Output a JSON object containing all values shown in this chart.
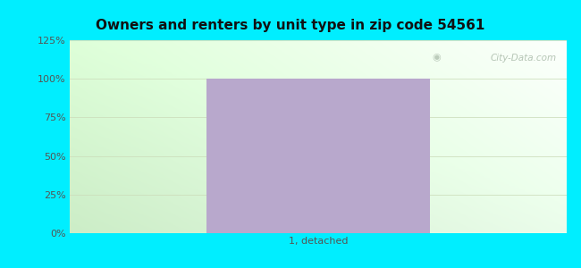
{
  "title": "Owners and renters by unit type in zip code 54561",
  "categories": [
    "1, detached"
  ],
  "values": [
    100
  ],
  "bar_color": "#b8a8cc",
  "ylim": [
    0,
    125
  ],
  "yticks": [
    0,
    25,
    50,
    75,
    100,
    125
  ],
  "ytick_labels": [
    "0%",
    "25%",
    "50%",
    "75%",
    "100%",
    "125%"
  ],
  "background_outer": "#00eeff",
  "title_fontsize": 11,
  "tick_fontsize": 8,
  "xlabel_fontsize": 8,
  "watermark": "City-Data.com",
  "bar_width": 0.45,
  "grid_color": "#ddeecc",
  "grid_alpha": 0.9,
  "bg_color_topleft": "#c8e8c0",
  "bg_color_topright": "#eefff0",
  "bg_color_bottomleft": "#d8f0d0",
  "bg_color_bottomright": "#f8fff8"
}
